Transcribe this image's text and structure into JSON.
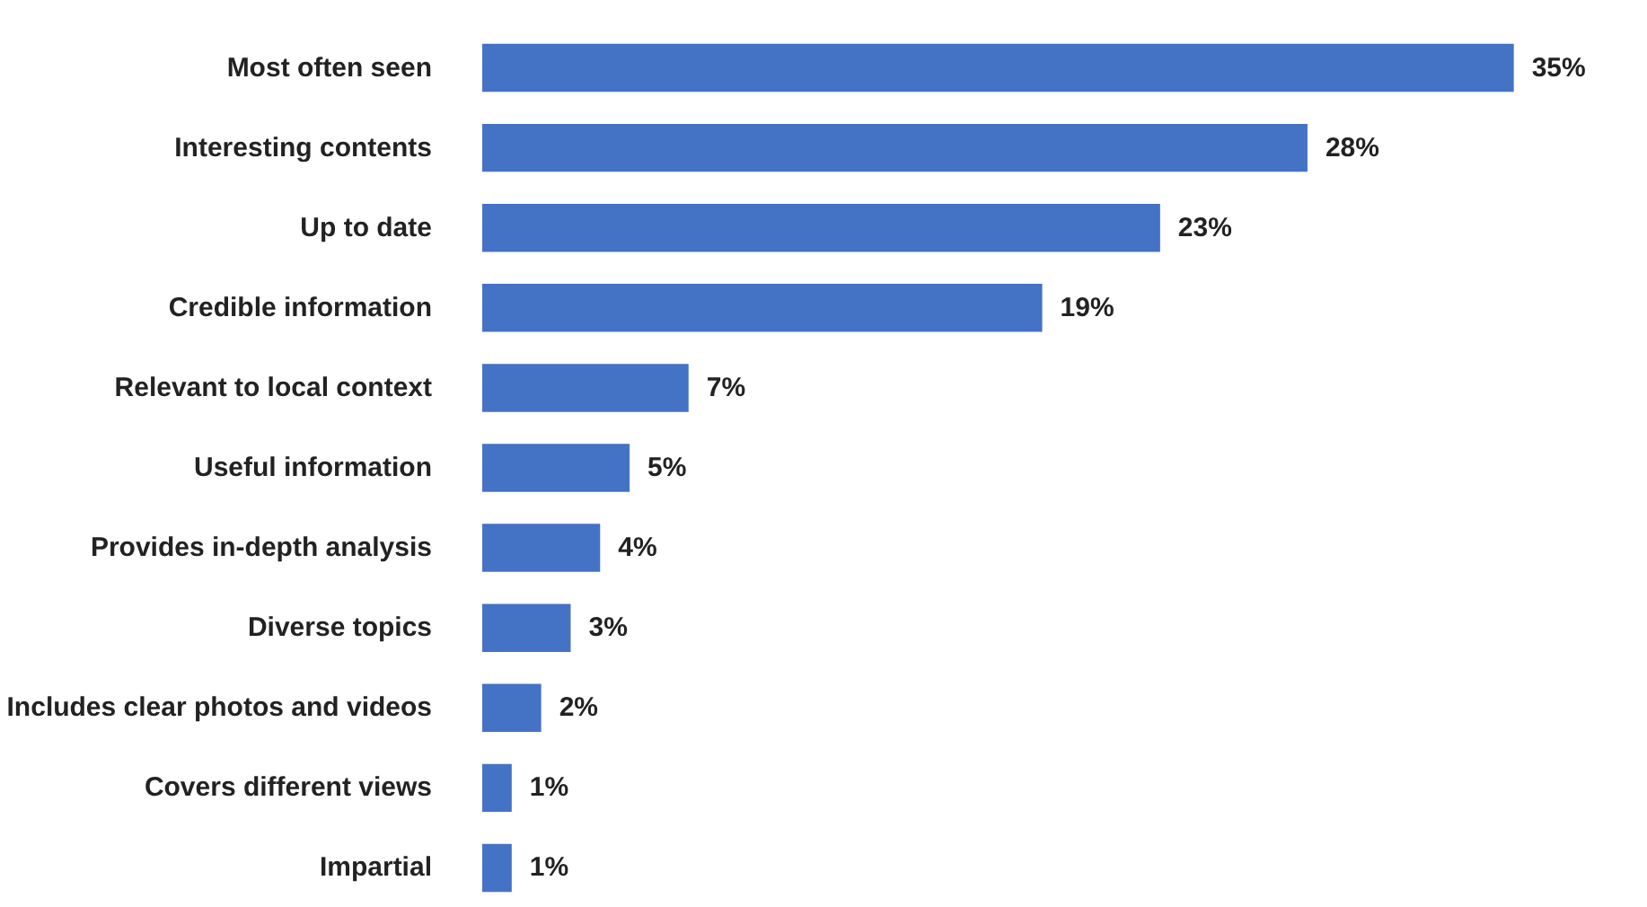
{
  "chart_data": {
    "type": "bar",
    "orientation": "horizontal",
    "categories": [
      "Most often seen",
      "Interesting contents",
      "Up to date",
      "Credible information",
      "Relevant to local context",
      "Useful information",
      "Provides in-depth analysis",
      "Diverse topics",
      "Includes clear photos and videos",
      "Covers different views",
      "Impartial"
    ],
    "values": [
      35,
      28,
      23,
      19,
      7,
      5,
      4,
      3,
      2,
      1,
      1
    ],
    "value_labels": [
      "35%",
      "28%",
      "23%",
      "19%",
      "7%",
      "5%",
      "4%",
      "3%",
      "2%",
      "1%",
      "1%"
    ],
    "color": "#4472c4",
    "grid": false
  }
}
